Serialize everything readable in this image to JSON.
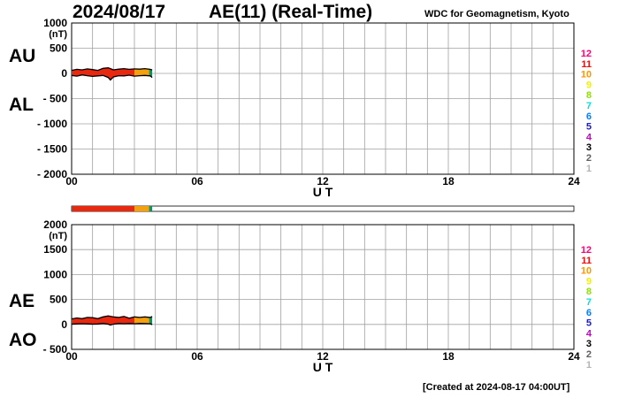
{
  "header": {
    "date": "2024/08/17",
    "index_title": "AE(11) (Real-Time)",
    "source": "WDC for Geomagnetism, Kyoto"
  },
  "footer": {
    "created": "[Created at 2024-08-17 04:00UT]"
  },
  "colors": {
    "red": "#e8280f",
    "orange": "#f5a00f",
    "green": "#00a050",
    "teal": "#008c8c",
    "grid": "#a0a0a0"
  },
  "legend": {
    "labels": [
      "12",
      "11",
      "10",
      "9",
      "8",
      "7",
      "6",
      "5",
      "4",
      "3",
      "2",
      "1"
    ],
    "colors": [
      "#ff0078",
      "#e81010",
      "#ff9600",
      "#f0f000",
      "#90e000",
      "#00e0e0",
      "#0080ff",
      "#2020c0",
      "#c800c8",
      "#000000",
      "#606060",
      "#b4b4b4"
    ]
  },
  "chart_data": [
    {
      "type": "line",
      "panel": "upper",
      "side_labels": {
        "top": "AU",
        "bottom": "AL"
      },
      "unit": "(nT)",
      "xlabel": "U T",
      "ylabel": "",
      "xlim": [
        0,
        24
      ],
      "ylim": [
        -2000,
        1000
      ],
      "xticks": [
        "00",
        "06",
        "12",
        "18",
        "24"
      ],
      "yticks": [
        "1000",
        "500",
        "0",
        "- 500",
        "- 1000",
        "- 1500",
        "- 2000"
      ],
      "ytick_values": [
        1000,
        500,
        0,
        -500,
        -1000,
        -1500,
        -2000
      ],
      "series": [
        {
          "role": "AU",
          "x": [
            0.0,
            0.25,
            0.5,
            0.75,
            1.0,
            1.25,
            1.5,
            1.75,
            2.0,
            2.25,
            2.5,
            2.75,
            3.0,
            3.25,
            3.5,
            3.75,
            3.85
          ],
          "y": [
            60,
            80,
            70,
            90,
            75,
            60,
            100,
            110,
            70,
            85,
            95,
            80,
            90,
            85,
            95,
            80,
            70
          ]
        },
        {
          "role": "AL",
          "x": [
            0.0,
            0.25,
            0.5,
            0.75,
            1.0,
            1.25,
            1.5,
            1.75,
            1.85,
            2.0,
            2.25,
            2.5,
            2.75,
            3.0,
            3.25,
            3.5,
            3.75,
            3.85
          ],
          "y": [
            -40,
            -55,
            -30,
            -45,
            -60,
            -50,
            -40,
            -80,
            -130,
            -70,
            -45,
            -50,
            -35,
            -55,
            -45,
            -40,
            -50,
            -80
          ]
        }
      ],
      "color_segments": [
        {
          "from": 0.0,
          "to": 3.0,
          "level": "red"
        },
        {
          "from": 3.0,
          "to": 3.7,
          "level": "orange"
        },
        {
          "from": 3.7,
          "to": 3.78,
          "level": "green"
        },
        {
          "from": 3.78,
          "to": 3.85,
          "level": "teal"
        }
      ]
    },
    {
      "type": "line",
      "panel": "lower",
      "side_labels": {
        "top": "AE",
        "bottom": "AO"
      },
      "unit": "(nT)",
      "xlabel": "U T",
      "ylabel": "",
      "xlim": [
        0,
        24
      ],
      "ylim": [
        -500,
        2000
      ],
      "xticks": [
        "00",
        "06",
        "12",
        "18",
        "24"
      ],
      "yticks": [
        "2000",
        "1500",
        "1000",
        "500",
        "0",
        "- 500"
      ],
      "ytick_values": [
        2000,
        1500,
        1000,
        500,
        0,
        -500
      ],
      "series": [
        {
          "role": "AE",
          "x": [
            0.0,
            0.25,
            0.5,
            0.75,
            1.0,
            1.25,
            1.5,
            1.75,
            2.0,
            2.25,
            2.5,
            2.75,
            3.0,
            3.25,
            3.5,
            3.75,
            3.85
          ],
          "y": [
            110,
            130,
            115,
            140,
            135,
            115,
            150,
            170,
            150,
            140,
            160,
            125,
            150,
            140,
            150,
            140,
            160
          ]
        },
        {
          "role": "AO",
          "x": [
            0.0,
            0.25,
            0.5,
            0.75,
            1.0,
            1.25,
            1.5,
            1.75,
            1.85,
            2.0,
            2.25,
            2.5,
            2.75,
            3.0,
            3.25,
            3.5,
            3.75,
            3.85
          ],
          "y": [
            5,
            10,
            15,
            10,
            5,
            8,
            20,
            5,
            -15,
            5,
            20,
            15,
            20,
            15,
            20,
            18,
            15,
            -5
          ]
        }
      ],
      "color_segments": [
        {
          "from": 0.0,
          "to": 3.0,
          "level": "red"
        },
        {
          "from": 3.0,
          "to": 3.7,
          "level": "orange"
        },
        {
          "from": 3.7,
          "to": 3.78,
          "level": "green"
        },
        {
          "from": 3.78,
          "to": 3.85,
          "level": "teal"
        }
      ]
    }
  ]
}
